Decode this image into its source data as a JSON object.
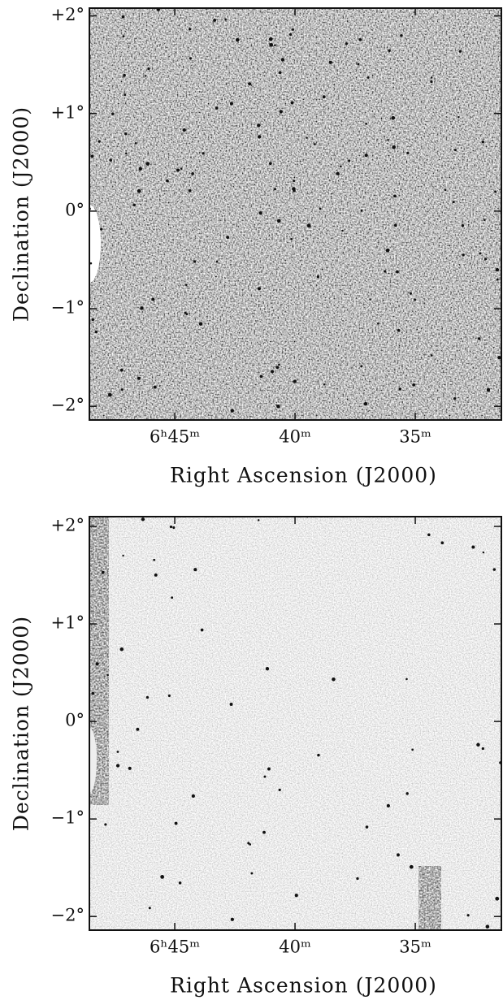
{
  "chart_data": [
    {
      "type": "image",
      "xlabel": "Right Ascension (J2000)",
      "ylabel": "Declination (J2000)",
      "xlim": [
        408.55,
        391.42
      ],
      "ylim": [
        2.08,
        -2.14
      ],
      "xticks": [
        {
          "value": 405,
          "label": "6ʰ45ᵐ"
        },
        {
          "value": 400,
          "label": "40ᵐ"
        },
        {
          "value": 395,
          "label": "35ᵐ"
        }
      ],
      "yticks": [
        {
          "value": 2,
          "label": "+2°"
        },
        {
          "value": 1,
          "label": "+1°"
        },
        {
          "value": 0,
          "label": "0°"
        },
        {
          "value": -1,
          "label": "−1°"
        },
        {
          "value": -2,
          "label": "−2°"
        }
      ]
    },
    {
      "type": "image",
      "xlabel": "Right Ascension (J2000)",
      "ylabel": "Declination (J2000)",
      "xlim": [
        408.55,
        391.42
      ],
      "ylim": [
        2.1,
        -2.14
      ],
      "xticks": [
        {
          "value": 405,
          "label": "6ʰ45ᵐ"
        },
        {
          "value": 400,
          "label": "40ᵐ"
        },
        {
          "value": 395,
          "label": "35ᵐ"
        }
      ],
      "yticks": [
        {
          "value": 2,
          "label": "+2°"
        },
        {
          "value": 1,
          "label": "+1°"
        },
        {
          "value": 0,
          "label": "0°"
        },
        {
          "value": -1,
          "label": "−1°"
        },
        {
          "value": -2,
          "label": "−2°"
        }
      ]
    }
  ]
}
